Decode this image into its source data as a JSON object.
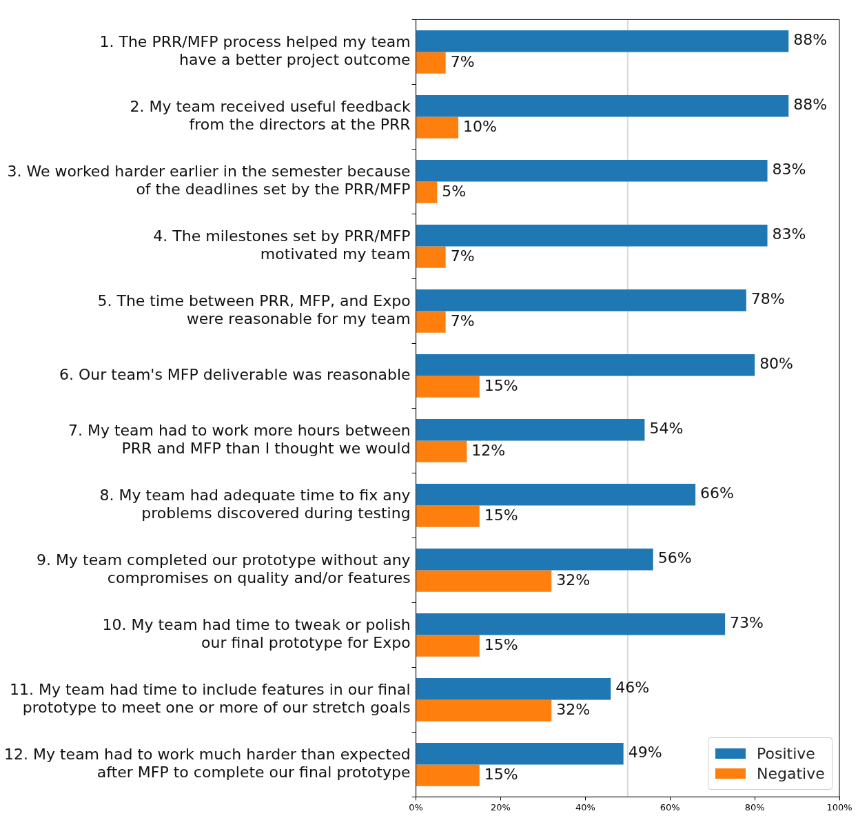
{
  "chart_data": {
    "type": "bar",
    "orientation": "horizontal",
    "categories": [
      "1. The PRR/MFP process helped my team\nhave a better project outcome",
      "2. My team received useful feedback\nfrom the directors at the PRR",
      "3. We worked harder earlier in the semester because\nof the deadlines set by the PRR/MFP",
      "4. The milestones set by PRR/MFP\nmotivated my team",
      "5. The time between PRR, MFP, and Expo\nwere reasonable for my team",
      "6. Our team's MFP deliverable was reasonable",
      "7. My team had to work more hours between\nPRR and MFP than I thought we would",
      "8. My team had adequate time to fix any\nproblems discovered during testing",
      "9. My team completed our prototype without any\ncompromises on quality and/or features",
      "10. My team had time to tweak or polish\nour final prototype for Expo",
      "11. My team had time to include features in our final\nprototype to meet one or more of our stretch goals",
      "12. My team had to work much harder than expected\nafter MFP to complete our final prototype"
    ],
    "series": [
      {
        "name": "Positive",
        "color": "#1f77b4",
        "values": [
          88,
          88,
          83,
          83,
          78,
          80,
          54,
          66,
          56,
          73,
          46,
          49
        ],
        "value_labels": [
          "88%",
          "88%",
          "83%",
          "83%",
          "78%",
          "80%",
          "54%",
          "66%",
          "56%",
          "73%",
          "46%",
          "49%"
        ]
      },
      {
        "name": "Negative",
        "color": "#ff7f0e",
        "values": [
          7,
          10,
          5,
          7,
          7,
          15,
          12,
          15,
          32,
          15,
          32,
          15
        ],
        "value_labels": [
          "7%",
          "10%",
          "5%",
          "7%",
          "7%",
          "15%",
          "12%",
          "15%",
          "32%",
          "15%",
          "32%",
          "15%"
        ]
      }
    ],
    "xlim": [
      0,
      100
    ],
    "xticks": [
      {
        "value": 0,
        "label": "0%"
      },
      {
        "value": 20,
        "label": "20%"
      },
      {
        "value": 40,
        "label": "40%"
      },
      {
        "value": 60,
        "label": "60%"
      },
      {
        "value": 80,
        "label": "80%"
      },
      {
        "value": 100,
        "label": "100%"
      }
    ],
    "ref_lines": [
      {
        "axis": "x",
        "value": 50,
        "color": "#d9d9d9"
      }
    ],
    "grid": false,
    "legend": "bottom right"
  }
}
